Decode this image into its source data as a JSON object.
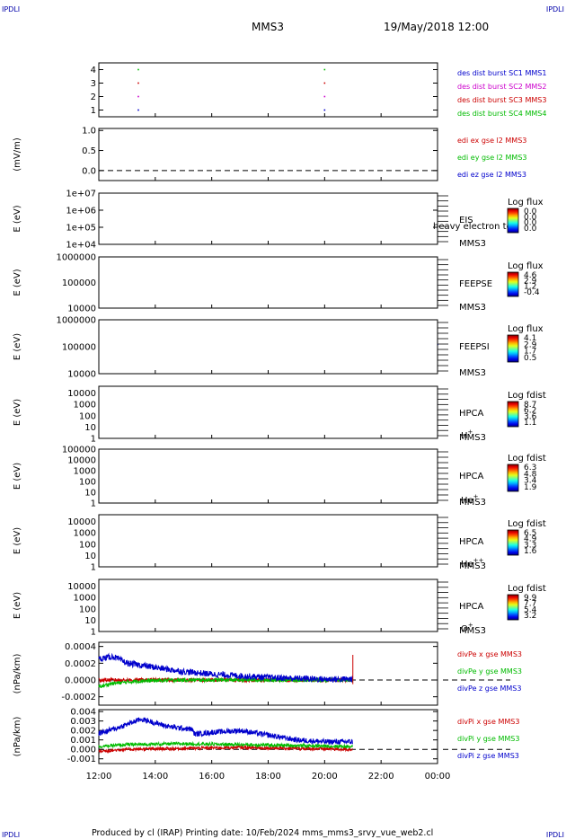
{
  "header": {
    "corner_label": "IPDLI",
    "center_title": "MMS3",
    "datetime": "19/May/2018 12:00"
  },
  "footer": {
    "credit": "Produced by cl (IRAP)   Printing date: 10/Feb/2024   mms_mms3_srvy_vue_web2.cl"
  },
  "time_axis": {
    "range_hours": [
      12,
      24
    ],
    "tick_labels": [
      "12:00",
      "14:00",
      "16:00",
      "18:00",
      "20:00",
      "22:00",
      "00:00"
    ],
    "data_end_hour": 21.0
  },
  "chart_data": [
    {
      "type": "scatter",
      "panel": "burst",
      "y_ticks": [
        "1",
        "2",
        "3",
        "4"
      ],
      "ylim": [
        0.5,
        4.5
      ],
      "series": [
        {
          "name": "des dist burst SC1 MMS1",
          "color": "#0000cc",
          "x_hours": [
            13.4,
            20.0
          ],
          "y": [
            1,
            1
          ]
        },
        {
          "name": "des dist burst SC2 MMS2",
          "color": "#cc00cc",
          "x_hours": [
            13.4,
            20.0
          ],
          "y": [
            2,
            2
          ]
        },
        {
          "name": "des dist burst SC3 MMS3",
          "color": "#cc0000",
          "x_hours": [
            13.4,
            20.0
          ],
          "y": [
            3,
            3
          ]
        },
        {
          "name": "des dist burst SC4 MMS4",
          "color": "#00bb00",
          "x_hours": [
            13.4,
            20.0
          ],
          "y": [
            4,
            4
          ]
        }
      ]
    },
    {
      "type": "line",
      "panel": "edi",
      "ylabel": "(mV/m)",
      "y_ticks": [
        "0.0",
        "0.5",
        "1.0"
      ],
      "ylim": [
        -0.25,
        1.05
      ],
      "reference_line": 0.0,
      "series": [
        {
          "name": "edi ex gse l2 MMS3",
          "color": "#cc0000"
        },
        {
          "name": "edi ey gse l2 MMS3",
          "color": "#00bb00"
        },
        {
          "name": "edi ez gse l2 MMS3",
          "color": "#0000cc"
        }
      ]
    },
    {
      "type": "heatmap",
      "panel": "eis",
      "ylabel": "E (eV)",
      "y_ticks": [
        "1e+04",
        "1e+05",
        "1e+06",
        "1e+07"
      ],
      "ylim": [
        10000,
        10000000
      ],
      "log_y": true,
      "instrument": "EIS",
      "instrument_sub": "MMS3",
      "overlay_note": "heavy electron to",
      "colorbar": {
        "title": "Log flux",
        "ticks": [
          "0.0",
          "0.0",
          "0.0",
          "0.0"
        ]
      },
      "empty": true
    },
    {
      "type": "heatmap",
      "panel": "feeps_e",
      "ylabel": "E (eV)",
      "y_ticks": [
        "10000",
        "100000",
        "1000000"
      ],
      "ylim": [
        10000,
        1000000
      ],
      "log_y": true,
      "instrument": "FEEPSE",
      "instrument_sub": "MMS3",
      "colorbar": {
        "title": "Log flux",
        "ticks": [
          "4.6",
          "2.9",
          "1.2",
          "-0.4"
        ]
      },
      "data_until_hour": 24.0
    },
    {
      "type": "heatmap",
      "panel": "feeps_i",
      "ylabel": "E (eV)",
      "y_ticks": [
        "10000",
        "100000",
        "1000000"
      ],
      "ylim": [
        10000,
        1000000
      ],
      "log_y": true,
      "instrument": "FEEPSI",
      "instrument_sub": "MMS3",
      "colorbar": {
        "title": "Log flux",
        "ticks": [
          "4.1",
          "2.9",
          "1.7",
          "0.5"
        ]
      },
      "data_until_hour": 24.0
    },
    {
      "type": "heatmap",
      "panel": "hpca_h",
      "ylabel": "E (eV)",
      "y_ticks": [
        "1",
        "10",
        "100",
        "1000",
        "10000"
      ],
      "ylim": [
        1,
        40000
      ],
      "log_y": true,
      "instrument": "HPCA",
      "instrument_sub": "MMS3",
      "species": {
        "base": "H",
        "sup": "+"
      },
      "colorbar": {
        "title": "Log fdist",
        "ticks": [
          "8.7",
          "6.2",
          "3.6",
          "1.1"
        ]
      },
      "data_until_hour": 21.0
    },
    {
      "type": "heatmap",
      "panel": "hpca_he",
      "ylabel": "E (eV)",
      "y_ticks": [
        "1",
        "10",
        "100",
        "1000",
        "10000",
        "100000"
      ],
      "ylim": [
        1,
        100000
      ],
      "log_y": true,
      "instrument": "HPCA",
      "instrument_sub": "MMS3",
      "species": {
        "base": "He",
        "sup": "+"
      },
      "colorbar": {
        "title": "Log fdist",
        "ticks": [
          "6.3",
          "4.8",
          "3.4",
          "1.9"
        ]
      },
      "data_until_hour": 21.0
    },
    {
      "type": "heatmap",
      "panel": "hpca_he2",
      "ylabel": "E (eV)",
      "y_ticks": [
        "1",
        "10",
        "100",
        "1000",
        "10000"
      ],
      "ylim": [
        1,
        40000
      ],
      "log_y": true,
      "instrument": "HPCA",
      "instrument_sub": "MMS3",
      "species": {
        "base": "He",
        "sup": "++"
      },
      "colorbar": {
        "title": "Log fdist",
        "ticks": [
          "6.5",
          "4.9",
          "3.3",
          "1.6"
        ]
      },
      "data_until_hour": 21.0
    },
    {
      "type": "heatmap",
      "panel": "hpca_o",
      "ylabel": "E (eV)",
      "y_ticks": [
        "1",
        "10",
        "100",
        "1000",
        "10000"
      ],
      "ylim": [
        1,
        40000
      ],
      "log_y": true,
      "instrument": "HPCA",
      "instrument_sub": "MMS3",
      "species": {
        "base": "O",
        "sup": "+"
      },
      "colorbar": {
        "title": "Log fdist",
        "ticks": [
          "9.9",
          "7.7",
          "5.4",
          "3.2"
        ]
      },
      "data_until_hour": 21.0
    },
    {
      "type": "line",
      "panel": "divpe",
      "ylabel": "(nPa/km)",
      "y_ticks": [
        "-0.0002",
        "0.0000",
        "0.0002",
        "0.0004"
      ],
      "ylim": [
        -0.0003,
        0.00045
      ],
      "reference_line": 0.0,
      "series": [
        {
          "name": "divPe x gse MMS3",
          "color": "#cc0000",
          "anchors_hours": [
            12.0,
            21.0
          ],
          "anchors": [
            0.0,
            0.0
          ]
        },
        {
          "name": "divPe y gse MMS3",
          "color": "#00bb00",
          "anchors_hours": [
            12.0,
            12.5,
            13.5,
            15.0,
            17.0,
            19.0,
            21.0
          ],
          "anchors": [
            -8e-05,
            -4e-05,
            -1e-05,
            0.0,
            0.0,
            0.0,
            0.0
          ]
        },
        {
          "name": "divPe z gse MMS3",
          "color": "#0000cc",
          "anchors_hours": [
            12.0,
            12.5,
            13.0,
            14.0,
            15.0,
            16.0,
            17.0,
            18.0,
            19.0,
            20.0,
            21.0
          ],
          "anchors": [
            0.00025,
            0.00028,
            0.0002,
            0.00015,
            0.0001,
            7e-05,
            5e-05,
            3e-05,
            2e-05,
            1e-05,
            1e-05
          ]
        }
      ]
    },
    {
      "type": "line",
      "panel": "divpi",
      "ylabel": "(nPa/km)",
      "y_ticks": [
        "-0.001",
        "0.000",
        "0.001",
        "0.002",
        "0.003",
        "0.004"
      ],
      "ylim": [
        -0.0015,
        0.0042
      ],
      "reference_line": 0.0,
      "series": [
        {
          "name": "divPi x gse MMS3",
          "color": "#cc0000",
          "anchors_hours": [
            12.0,
            13.0,
            15.0,
            17.0,
            19.0,
            21.0
          ],
          "anchors": [
            -0.0002,
            0.0,
            0.0001,
            0.0002,
            0.0001,
            0.0
          ]
        },
        {
          "name": "divPi y gse MMS3",
          "color": "#00bb00",
          "anchors_hours": [
            12.0,
            13.0,
            15.0,
            17.0,
            19.0,
            21.0
          ],
          "anchors": [
            0.0003,
            0.0005,
            0.0006,
            0.0005,
            0.0004,
            0.0003
          ]
        },
        {
          "name": "divPi z gse MMS3",
          "color": "#0000cc",
          "anchors_hours": [
            12.0,
            12.6,
            13.5,
            14.5,
            15.3,
            15.4,
            16.0,
            17.0,
            18.0,
            19.0,
            20.0,
            21.0
          ],
          "anchors": [
            0.0017,
            0.0022,
            0.0032,
            0.0024,
            0.0021,
            0.0016,
            0.0018,
            0.002,
            0.0015,
            0.001,
            0.0008,
            0.0008
          ]
        }
      ]
    }
  ]
}
